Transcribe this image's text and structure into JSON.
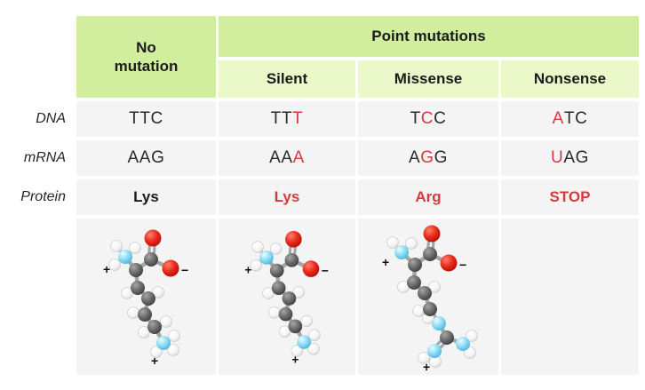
{
  "colors": {
    "header_green": "#d1ee9f",
    "subheader_green": "#eaf8ca",
    "cell_gray": "#f4f4f4",
    "accent_red": "#d63a40"
  },
  "header": {
    "no_mutation": "No mutation",
    "point_mutations": "Point mutations",
    "subtypes": [
      "Silent",
      "Missense",
      "Nonsense"
    ]
  },
  "rows": {
    "dna": {
      "label": "DNA",
      "cells": [
        [
          {
            "t": "TTC",
            "red": false
          }
        ],
        [
          {
            "t": "TT",
            "red": false
          },
          {
            "t": "T",
            "red": true
          }
        ],
        [
          {
            "t": "T",
            "red": false
          },
          {
            "t": "C",
            "red": true
          },
          {
            "t": "C",
            "red": false
          }
        ],
        [
          {
            "t": "A",
            "red": true
          },
          {
            "t": "TC",
            "red": false
          }
        ]
      ]
    },
    "mrna": {
      "label": "mRNA",
      "cells": [
        [
          {
            "t": "AAG",
            "red": false
          }
        ],
        [
          {
            "t": "AA",
            "red": false
          },
          {
            "t": "A",
            "red": true
          }
        ],
        [
          {
            "t": "A",
            "red": false
          },
          {
            "t": "G",
            "red": true
          },
          {
            "t": "G",
            "red": false
          }
        ],
        [
          {
            "t": "U",
            "red": true
          },
          {
            "t": "AG",
            "red": false
          }
        ]
      ]
    },
    "protein": {
      "label": "Protein",
      "cells": [
        [
          {
            "t": "Lys",
            "red": false
          }
        ],
        [
          {
            "t": "Lys",
            "red": true
          }
        ],
        [
          {
            "t": "Arg",
            "red": true
          }
        ],
        [
          {
            "t": "STOP",
            "red": true
          }
        ]
      ]
    }
  },
  "molecules": {
    "no_mutation": "lysine",
    "silent": "lysine",
    "missense": "arginine",
    "nonsense": null,
    "charge_plus": "+",
    "charge_minus": "−"
  }
}
